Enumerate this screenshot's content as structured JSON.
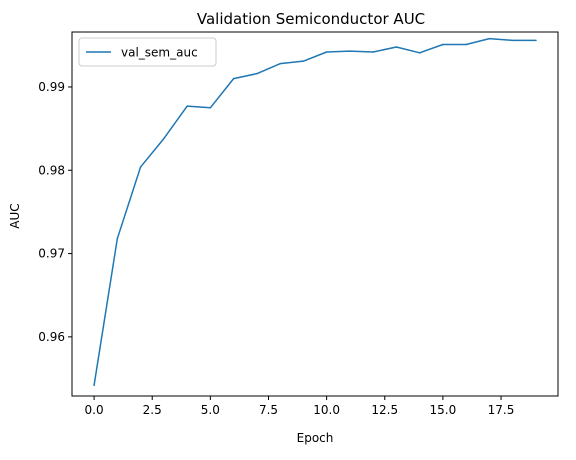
{
  "chart_data": {
    "type": "line",
    "title": "Validation Semiconductor AUC",
    "xlabel": "Epoch",
    "ylabel": "AUC",
    "xlim": [
      -0.95,
      19.95
    ],
    "ylim": [
      0.9529,
      0.9966
    ],
    "xticks": [
      0.0,
      2.5,
      5.0,
      7.5,
      10.0,
      12.5,
      15.0,
      17.5
    ],
    "xtick_labels": [
      "0.0",
      "2.5",
      "5.0",
      "7.5",
      "10.0",
      "12.5",
      "15.0",
      "17.5"
    ],
    "yticks": [
      0.96,
      0.97,
      0.98,
      0.99
    ],
    "ytick_labels": [
      "0.96",
      "0.97",
      "0.98",
      "0.99"
    ],
    "grid": false,
    "legend_position": "upper-left",
    "series": [
      {
        "name": "val_sem_auc",
        "color": "#1f77b4",
        "x": [
          0,
          1,
          2,
          3,
          4,
          5,
          6,
          7,
          8,
          9,
          10,
          11,
          12,
          13,
          14,
          15,
          16,
          17,
          18,
          19
        ],
        "y": [
          0.9542,
          0.9718,
          0.9804,
          0.9838,
          0.9877,
          0.9875,
          0.991,
          0.9916,
          0.9928,
          0.9931,
          0.9942,
          0.9943,
          0.9942,
          0.9948,
          0.9941,
          0.9951,
          0.9951,
          0.9958,
          0.9956,
          0.9956
        ]
      }
    ]
  }
}
